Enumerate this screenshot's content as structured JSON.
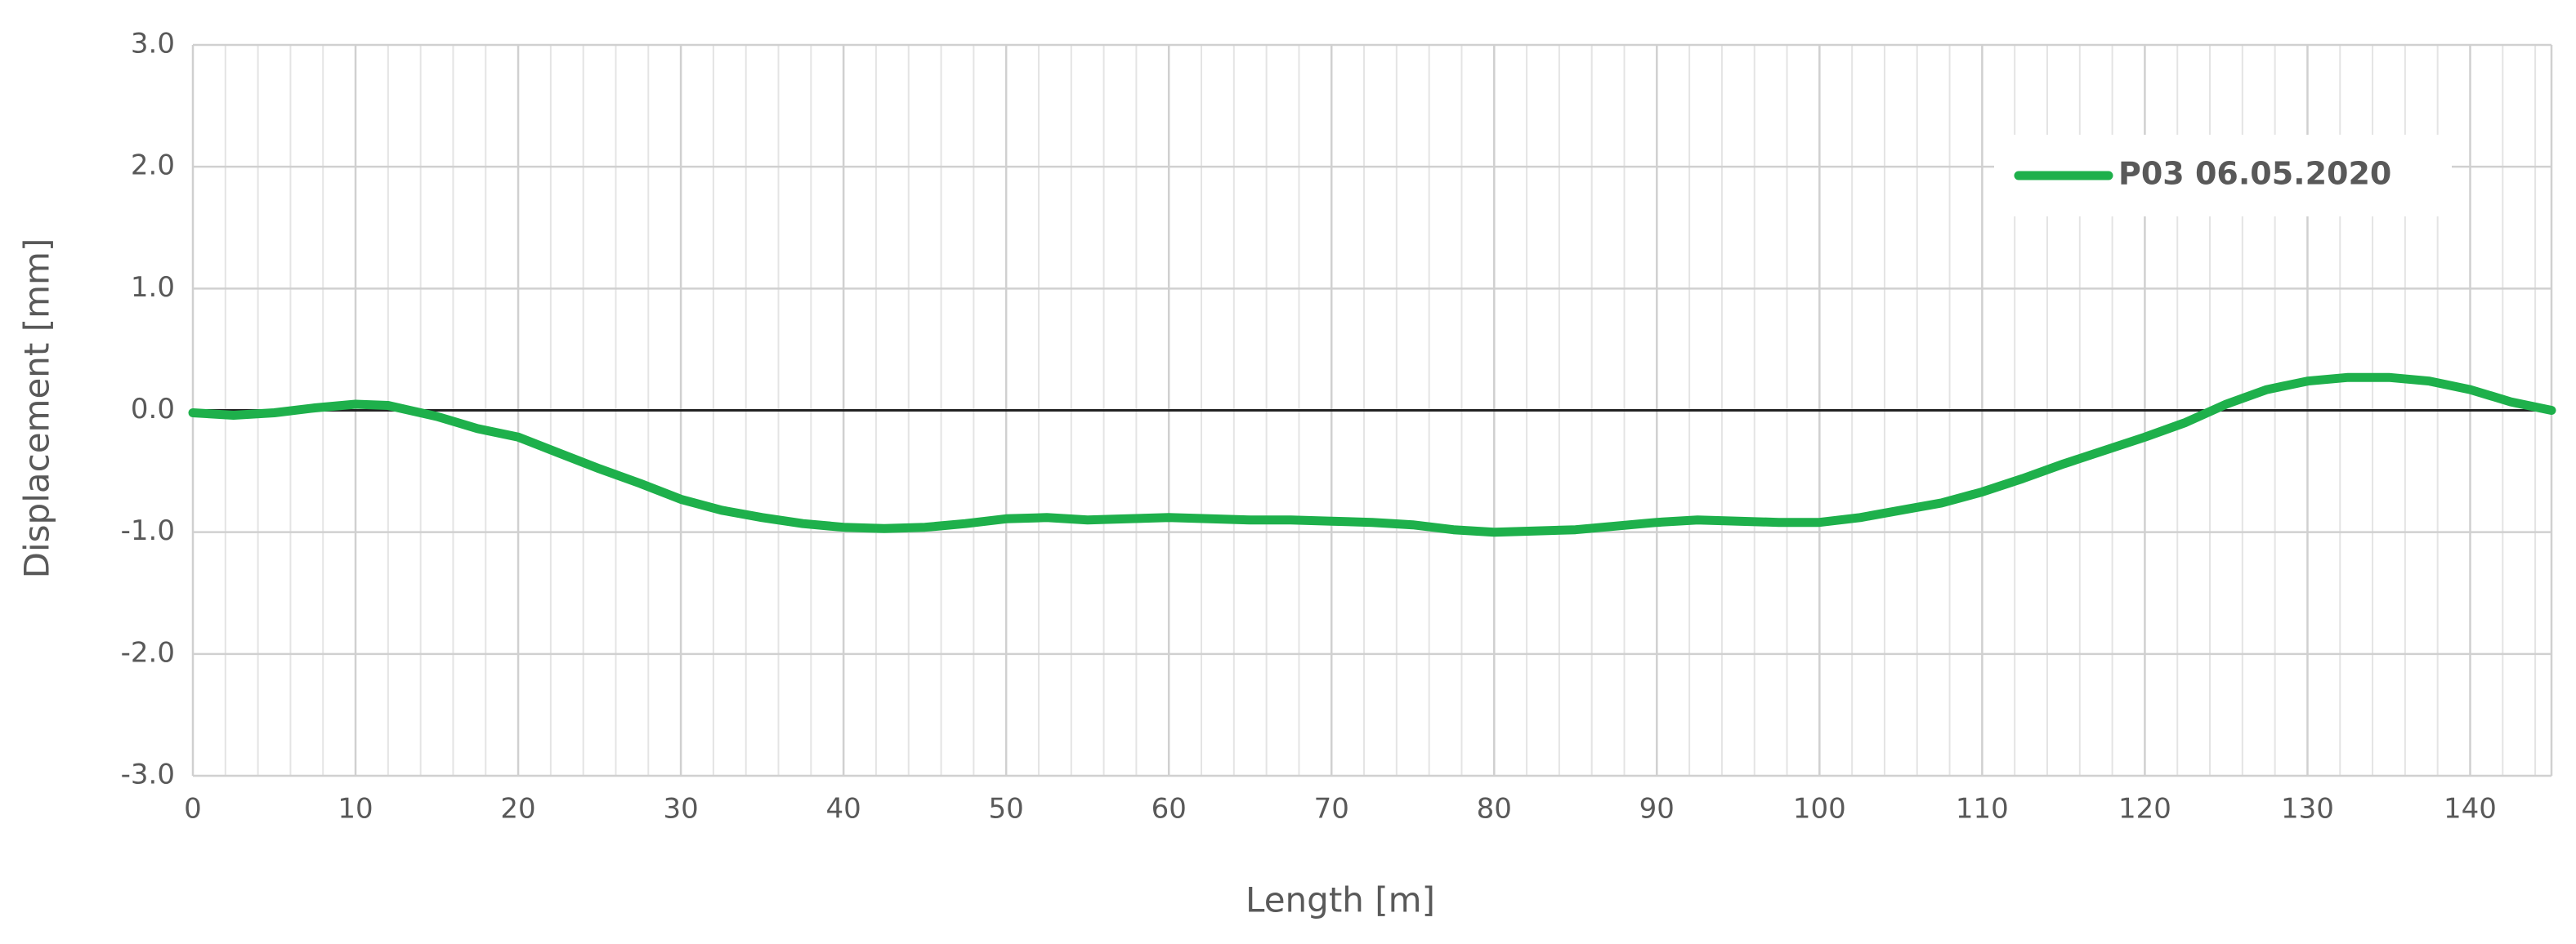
{
  "chart_data": {
    "type": "line",
    "x_label": "Length [m]",
    "y_label": "Displacement [mm]",
    "x": [
      0,
      2.5,
      5,
      7.5,
      10,
      12,
      15,
      17.5,
      20,
      22.5,
      25,
      27.5,
      30,
      32.5,
      35,
      37.5,
      40,
      42.5,
      45,
      47.5,
      50,
      52.5,
      55,
      57.5,
      60,
      62.5,
      65,
      67.5,
      70,
      72.5,
      75,
      77.5,
      80,
      82.5,
      85,
      87.5,
      90,
      92.5,
      95,
      97.5,
      100,
      102.5,
      105,
      107.5,
      110,
      112.5,
      115,
      117.5,
      120,
      122.5,
      125,
      127.5,
      130,
      132.5,
      135,
      137.5,
      140,
      142.5,
      145
    ],
    "series": [
      {
        "name": "P03 06.05.2020",
        "color": "#1eb04b",
        "values": [
          -0.02,
          -0.04,
          -0.02,
          0.02,
          0.05,
          0.04,
          -0.05,
          -0.15,
          -0.22,
          -0.35,
          -0.48,
          -0.6,
          -0.73,
          -0.82,
          -0.88,
          -0.93,
          -0.96,
          -0.97,
          -0.96,
          -0.93,
          -0.89,
          -0.88,
          -0.9,
          -0.89,
          -0.88,
          -0.89,
          -0.9,
          -0.9,
          -0.91,
          -0.92,
          -0.94,
          -0.98,
          -1.0,
          -0.99,
          -0.98,
          -0.95,
          -0.92,
          -0.9,
          -0.91,
          -0.92,
          -0.92,
          -0.88,
          -0.82,
          -0.76,
          -0.67,
          -0.56,
          -0.44,
          -0.33,
          -0.22,
          -0.1,
          0.05,
          0.17,
          0.24,
          0.27,
          0.27,
          0.24,
          0.17,
          0.07,
          0.0
        ]
      }
    ],
    "xlim": [
      0,
      145
    ],
    "xticks": [
      0,
      10,
      20,
      30,
      40,
      50,
      60,
      70,
      80,
      90,
      100,
      110,
      120,
      130,
      140
    ],
    "ylim": [
      -3,
      3
    ],
    "yticks": [
      {
        "value": -3,
        "label": "-3.0"
      },
      {
        "value": -2,
        "label": "-2.0"
      },
      {
        "value": -1,
        "label": "-1.0"
      },
      {
        "value": 0,
        "label": "0.0"
      },
      {
        "value": 1,
        "label": "1.0"
      },
      {
        "value": 2,
        "label": "2.0"
      },
      {
        "value": 3,
        "label": "3.0"
      }
    ],
    "grid": true,
    "legend": "upper right"
  }
}
